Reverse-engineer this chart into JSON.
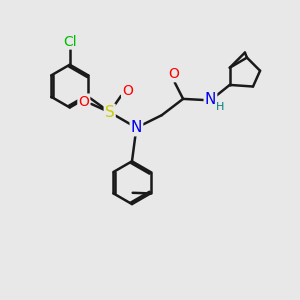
{
  "background_color": "#e8e8e8",
  "line_color": "#1a1a1a",
  "bond_width": 1.8,
  "atom_colors": {
    "Cl": "#00bb00",
    "S": "#cccc00",
    "N": "#0000ee",
    "O": "#ff0000",
    "H": "#008080",
    "C": "#1a1a1a"
  },
  "font_size": 10
}
